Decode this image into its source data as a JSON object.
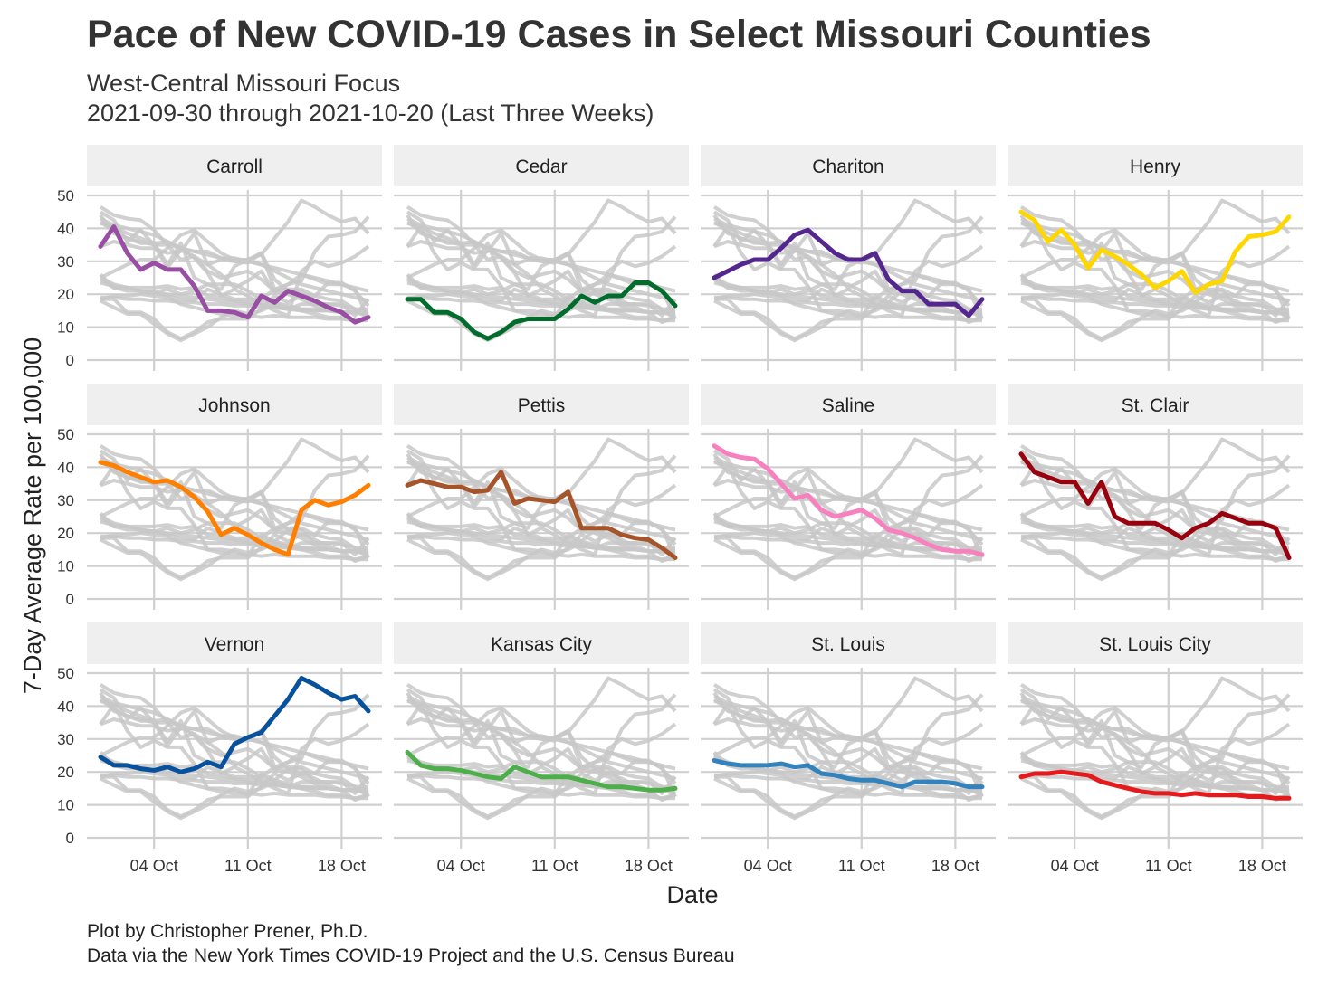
{
  "title": "Pace of New COVID-19 Cases in Select Missouri Counties",
  "subtitle_line1": "West-Central Missouri Focus",
  "subtitle_line2": "2021-09-30 through 2021-10-20 (Last Three Weeks)",
  "caption_line1": "Plot by Christopher Prener, Ph.D.",
  "caption_line2": "Data via the New York Times COVID-19 Project and the U.S. Census Bureau",
  "chart_data": {
    "type": "line",
    "xlabel": "Date",
    "ylabel": "7-Day Average Rate per 100,000",
    "x_dates": [
      "2021-09-30",
      "2021-10-01",
      "2021-10-02",
      "2021-10-03",
      "2021-10-04",
      "2021-10-05",
      "2021-10-06",
      "2021-10-07",
      "2021-10-08",
      "2021-10-09",
      "2021-10-10",
      "2021-10-11",
      "2021-10-12",
      "2021-10-13",
      "2021-10-14",
      "2021-10-15",
      "2021-10-16",
      "2021-10-17",
      "2021-10-18",
      "2021-10-19",
      "2021-10-20"
    ],
    "x_ticks": [
      "04 Oct",
      "11 Oct",
      "18 Oct"
    ],
    "x_tick_dates": [
      "2021-10-04",
      "2021-10-11",
      "2021-10-18"
    ],
    "y_ticks": [
      0,
      10,
      20,
      30,
      40,
      50
    ],
    "ylim": [
      0,
      50
    ],
    "grid": true,
    "layout": "facet grid, 3 rows x 4 columns; every panel shows all series in light gray with the panel's own series highlighted",
    "background_series_color": "#c8c8c8",
    "series": [
      {
        "name": "Carroll",
        "color": "#984ea3",
        "values": [
          34.5,
          40.5,
          32.5,
          27.5,
          29.5,
          27.5,
          27.5,
          22.5,
          15,
          15,
          14.5,
          13,
          19.5,
          17.5,
          21,
          19.5,
          18,
          16,
          14.5,
          11.5,
          13
        ]
      },
      {
        "name": "Cedar",
        "color": "#006d2c",
        "values": [
          18.5,
          18.5,
          14.5,
          14.5,
          12.5,
          8.5,
          6.5,
          8.5,
          11.5,
          12.5,
          12.5,
          12.5,
          15.5,
          19.5,
          17.5,
          19.5,
          19.5,
          23.5,
          23.5,
          21,
          16.5
        ]
      },
      {
        "name": "Chariton",
        "color": "#54278f",
        "values": [
          25,
          27,
          29,
          30.5,
          30.5,
          34,
          38,
          39.5,
          36,
          32.5,
          30.5,
          30.5,
          32.5,
          24.5,
          21,
          21,
          17,
          17,
          17,
          13.5,
          18.5
        ]
      },
      {
        "name": "Henry",
        "color": "#ffd700",
        "values": [
          45,
          42.5,
          36,
          39.5,
          35,
          28,
          33.5,
          31.5,
          29,
          26,
          22,
          24,
          27,
          20.5,
          23,
          24,
          33,
          37.5,
          38,
          39,
          43.5
        ]
      },
      {
        "name": "Johnson",
        "color": "#ff7f00",
        "values": [
          41.5,
          40.5,
          38.5,
          37,
          35.5,
          36,
          34,
          31,
          26.5,
          19.5,
          21.5,
          19.5,
          17,
          15,
          13.5,
          27,
          30,
          28.5,
          29.5,
          31.5,
          34.5
        ]
      },
      {
        "name": "Pettis",
        "color": "#a6542a",
        "values": [
          34.5,
          36,
          35,
          34,
          34,
          32.5,
          33,
          38.5,
          29,
          30.5,
          30,
          29.5,
          32.5,
          21.5,
          21.5,
          21.5,
          19.5,
          18.5,
          18,
          15.5,
          12.5
        ]
      },
      {
        "name": "Saline",
        "color": "#f781bf",
        "values": [
          46.5,
          44,
          43,
          42.5,
          39.5,
          35,
          30.5,
          31.5,
          27,
          25,
          26,
          27,
          24.5,
          21,
          20,
          18.5,
          16.5,
          15,
          14.5,
          14.5,
          13.5
        ]
      },
      {
        "name": "St. Clair",
        "color": "#99000d",
        "values": [
          44,
          38.5,
          37,
          35.5,
          35.5,
          29,
          35.5,
          25,
          23,
          23,
          23,
          21,
          18.5,
          21.5,
          23,
          26,
          24.5,
          23,
          23,
          21.5,
          12.5
        ]
      },
      {
        "name": "Vernon",
        "color": "#08519c",
        "values": [
          24.5,
          22,
          22,
          21,
          20.5,
          21.5,
          20,
          21,
          23,
          21.5,
          28.5,
          30.5,
          32,
          37,
          42,
          48.5,
          46.5,
          44,
          42,
          43,
          38.5
        ]
      },
      {
        "name": "Kansas City",
        "color": "#4daf4a",
        "values": [
          26,
          22,
          21,
          21,
          20.5,
          19.5,
          18.5,
          18,
          21.5,
          20,
          18.5,
          18.5,
          18.5,
          17.5,
          16.5,
          15.5,
          15.5,
          15,
          14.5,
          14.5,
          15
        ]
      },
      {
        "name": "St. Louis",
        "color": "#3182bd",
        "values": [
          23.5,
          22.5,
          22,
          22,
          22,
          22.5,
          21.5,
          22,
          19.5,
          19,
          18,
          17.5,
          17.5,
          16.5,
          15.5,
          17,
          17,
          17,
          16.5,
          15.5,
          15.5
        ]
      },
      {
        "name": "St. Louis City",
        "color": "#e41a1c",
        "values": [
          18.5,
          19.5,
          19.5,
          20,
          19.5,
          19,
          17,
          16,
          15,
          14,
          13.5,
          13.5,
          13,
          13.5,
          13,
          13,
          13,
          12.5,
          12.5,
          12,
          12
        ]
      }
    ],
    "extra_background_series": [
      {
        "values": [
          43,
          41,
          40,
          39,
          38,
          36,
          34,
          33,
          33,
          31,
          30,
          30,
          29,
          27,
          25,
          23,
          22,
          21,
          20,
          19,
          18
        ]
      },
      {
        "values": [
          42,
          39,
          37,
          36,
          35,
          35,
          34,
          33,
          32,
          31,
          31,
          30,
          29,
          28,
          27,
          26,
          25,
          24,
          23,
          22,
          21
        ]
      },
      {
        "values": [
          19,
          19,
          18.5,
          18.5,
          18,
          18,
          17.5,
          17.5,
          17,
          17,
          16.5,
          16.5,
          16,
          16,
          15.5,
          15.5,
          15,
          15,
          14.5,
          14.5,
          14
        ]
      },
      {
        "values": [
          25,
          23,
          22,
          21,
          20.5,
          20,
          19.5,
          19,
          18.5,
          18,
          17.5,
          17,
          16.5,
          16,
          15.5,
          15,
          15,
          15,
          14.5,
          14.5,
          14
        ]
      },
      {
        "values": [
          18,
          16,
          14,
          14,
          11,
          8,
          6,
          8,
          10,
          13,
          15,
          14,
          15,
          17,
          16,
          15,
          14,
          13,
          13,
          12,
          13
        ]
      }
    ]
  }
}
